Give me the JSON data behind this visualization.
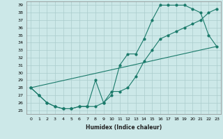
{
  "xlabel": "Humidex (Indice chaleur)",
  "xlim": [
    -0.5,
    23.5
  ],
  "ylim": [
    24.5,
    39.5
  ],
  "xticks": [
    0,
    1,
    2,
    3,
    4,
    5,
    6,
    7,
    8,
    9,
    10,
    11,
    12,
    13,
    14,
    15,
    16,
    17,
    18,
    19,
    20,
    21,
    22,
    23
  ],
  "yticks": [
    25,
    26,
    27,
    28,
    29,
    30,
    31,
    32,
    33,
    34,
    35,
    36,
    37,
    38,
    39
  ],
  "bg_color": "#cce8e8",
  "grid_color": "#aacccc",
  "line_color": "#1a7a6a",
  "line1_x": [
    0,
    1,
    2,
    3,
    4,
    5,
    6,
    7,
    8,
    9,
    10,
    11,
    12,
    13,
    14,
    15,
    16,
    17,
    18,
    19,
    20,
    21,
    22,
    23
  ],
  "line1_y": [
    28,
    27,
    26,
    25.5,
    25.2,
    25.2,
    25.5,
    25.5,
    25.5,
    26,
    27,
    31,
    32.5,
    32.5,
    34.5,
    37,
    39,
    39,
    39,
    39,
    38.5,
    38,
    35,
    33.5
  ],
  "line2_x": [
    0,
    1,
    2,
    3,
    4,
    5,
    6,
    7,
    8,
    9,
    10,
    11,
    12,
    13,
    14,
    15,
    16,
    17,
    18,
    19,
    20,
    21,
    22,
    23
  ],
  "line2_y": [
    28,
    27,
    26,
    25.5,
    25.2,
    25.2,
    25.5,
    25.5,
    29,
    26,
    27.5,
    27.5,
    28,
    29.5,
    31.5,
    33,
    34.5,
    35,
    35.5,
    36,
    36.5,
    37,
    38,
    38.5
  ],
  "line3_x": [
    0,
    23
  ],
  "line3_y": [
    28,
    33.5
  ]
}
